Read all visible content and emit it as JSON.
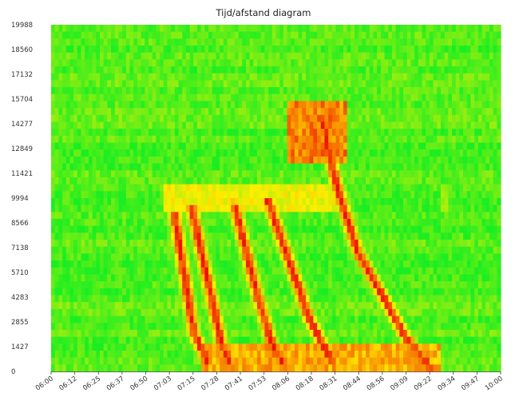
{
  "chart_data": {
    "type": "heatmap",
    "title": "Tijd/afstand diagram",
    "xlabel": "",
    "ylabel": "",
    "x_ticks": [
      "06:00",
      "06:12",
      "06:25",
      "06:37",
      "06:50",
      "07:03",
      "07:15",
      "07:28",
      "07:41",
      "07:53",
      "08:06",
      "08:18",
      "08:31",
      "08:44",
      "08:56",
      "09:09",
      "09:22",
      "09:34",
      "09:47",
      "10:00"
    ],
    "y_ticks": [
      0,
      1427,
      2855,
      4283,
      5710,
      7138,
      8566,
      9994,
      11421,
      12849,
      14277,
      15704,
      17132,
      18560,
      19988
    ],
    "xlim": [
      "06:00",
      "10:00"
    ],
    "ylim": [
      0,
      19988
    ],
    "color_scale": {
      "low": "#1aee22",
      "mid": "#ffee00",
      "high": "#ee1100"
    },
    "congestion_waves": [
      {
        "points": [
          [
            7.1,
            9000
          ],
          [
            7.27,
            2200
          ],
          [
            7.4,
            400
          ]
        ]
      },
      {
        "points": [
          [
            7.25,
            9400
          ],
          [
            7.52,
            1500
          ],
          [
            7.6,
            300
          ]
        ]
      },
      {
        "points": [
          [
            7.63,
            9600
          ],
          [
            7.82,
            4800
          ],
          [
            7.98,
            1200
          ],
          [
            8.08,
            300
          ]
        ]
      },
      {
        "points": [
          [
            7.93,
            9800
          ],
          [
            8.3,
            3000
          ],
          [
            8.52,
            300
          ]
        ]
      },
      {
        "points": [
          [
            8.42,
            14300
          ],
          [
            8.53,
            11000
          ],
          [
            8.72,
            7000
          ],
          [
            9.15,
            2000
          ],
          [
            9.37,
            300
          ]
        ]
      }
    ],
    "congestion_zones": [
      {
        "x_range": [
          7.0,
          8.55
        ],
        "y_range": [
          9200,
          10700
        ],
        "intensity": 0.5
      },
      {
        "x_range": [
          8.1,
          8.62
        ],
        "y_range": [
          12000,
          15500
        ],
        "intensity": 0.8
      },
      {
        "x_range": [
          7.33,
          9.45
        ],
        "y_range": [
          100,
          1600
        ],
        "intensity": 0.7
      },
      {
        "x_range": [
          9.46,
          9.52
        ],
        "y_range": [
          9200,
          10700
        ],
        "intensity": 0.3
      }
    ]
  }
}
